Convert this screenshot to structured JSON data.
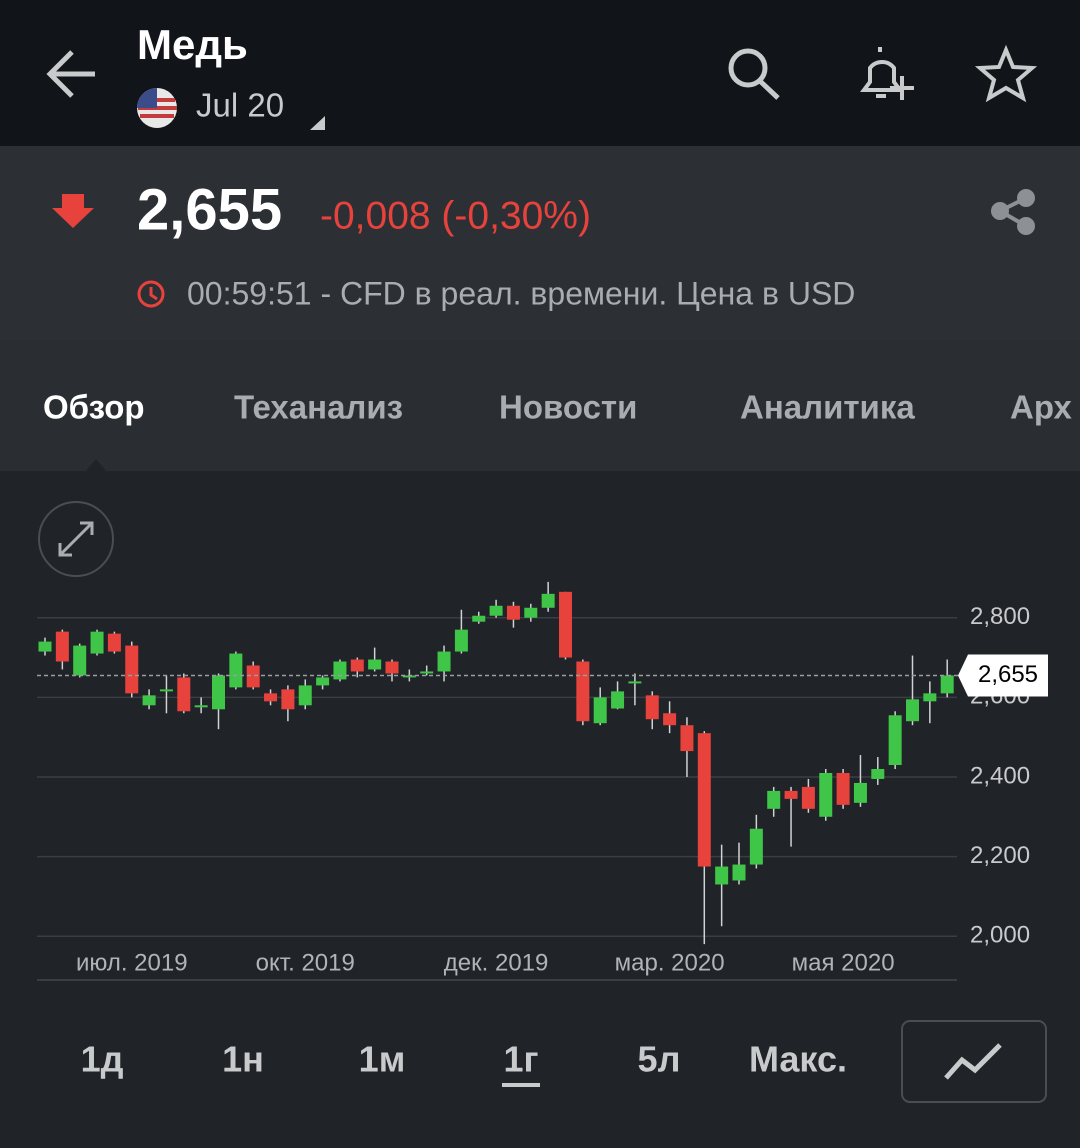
{
  "header": {
    "title": "Медь",
    "contract": "Jul 20"
  },
  "quote": {
    "price": "2,655",
    "change": "-0,008 (-0,30%)",
    "status": "00:59:51 - CFD в реал. времени. Цена в USD"
  },
  "tabs": [
    "Обзор",
    "Теханализ",
    "Новости",
    "Аналитика",
    "Арх"
  ],
  "chart_data": {
    "type": "candlestick",
    "categories": [
      null,
      null,
      null,
      null,
      null,
      "июл. 2019",
      null,
      null,
      null,
      null,
      null,
      null,
      null,
      null,
      null,
      "окт. 2019",
      null,
      null,
      null,
      null,
      null,
      null,
      null,
      null,
      null,
      null,
      "дек. 2019",
      null,
      null,
      null,
      null,
      null,
      null,
      null,
      null,
      null,
      "мар. 2020",
      null,
      null,
      null,
      null,
      null,
      null,
      null,
      null,
      null,
      "мая 2020",
      null,
      null,
      null,
      null,
      null,
      null
    ],
    "open": [
      2715,
      2765,
      2655,
      2710,
      2760,
      2730,
      2580,
      2615,
      2650,
      2575,
      2570,
      2625,
      2680,
      2610,
      2620,
      2580,
      2630,
      2645,
      2695,
      2670,
      2690,
      2650,
      2660,
      2665,
      2715,
      2790,
      2805,
      2830,
      2800,
      2825,
      2865,
      2690,
      2535,
      2572,
      2635,
      2605,
      2560,
      2530,
      2510,
      2130,
      2140,
      2180,
      2320,
      2365,
      2375,
      2300,
      2410,
      2335,
      2395,
      2430,
      2540,
      2590,
      2610
    ],
    "high": [
      2750,
      2770,
      2735,
      2770,
      2765,
      2740,
      2620,
      2655,
      2660,
      2600,
      2660,
      2715,
      2690,
      2620,
      2630,
      2645,
      2655,
      2695,
      2700,
      2725,
      2695,
      2670,
      2680,
      2730,
      2820,
      2815,
      2845,
      2840,
      2835,
      2890,
      2865,
      2695,
      2625,
      2640,
      2660,
      2615,
      2590,
      2550,
      2515,
      2230,
      2235,
      2305,
      2375,
      2375,
      2395,
      2420,
      2420,
      2455,
      2450,
      2565,
      2705,
      2640,
      2695
    ],
    "low": [
      2705,
      2670,
      2650,
      2705,
      2710,
      2600,
      2570,
      2560,
      2560,
      2560,
      2520,
      2620,
      2620,
      2580,
      2540,
      2570,
      2620,
      2640,
      2650,
      2665,
      2640,
      2640,
      2655,
      2640,
      2710,
      2785,
      2800,
      2775,
      2790,
      2815,
      2695,
      2530,
      2530,
      2570,
      2580,
      2520,
      2510,
      2400,
      1980,
      2025,
      2130,
      2170,
      2300,
      2225,
      2310,
      2290,
      2320,
      2325,
      2380,
      2420,
      2530,
      2535,
      2600
    ],
    "close": [
      2740,
      2690,
      2730,
      2765,
      2715,
      2610,
      2605,
      2620,
      2565,
      2580,
      2655,
      2710,
      2625,
      2590,
      2570,
      2630,
      2650,
      2690,
      2665,
      2695,
      2660,
      2655,
      2665,
      2715,
      2770,
      2805,
      2830,
      2795,
      2825,
      2860,
      2700,
      2540,
      2600,
      2615,
      2640,
      2545,
      2530,
      2465,
      2175,
      2175,
      2180,
      2270,
      2365,
      2345,
      2320,
      2410,
      2330,
      2385,
      2420,
      2555,
      2595,
      2610,
      2655
    ],
    "up_color": "#3fc547",
    "down_color": "#e8423d",
    "ylim": [
      1890,
      2950
    ],
    "yticks": [
      {
        "value": 2000,
        "label": "2,000"
      },
      {
        "value": 2200,
        "label": "2,200"
      },
      {
        "value": 2400,
        "label": "2,400"
      },
      {
        "value": 2600,
        "label": "2,600"
      },
      {
        "value": 2800,
        "label": "2,800"
      }
    ],
    "grid": true,
    "last_price": {
      "value": 2655,
      "label": "2,655"
    }
  },
  "ranges": [
    "1д",
    "1н",
    "1м",
    "1г",
    "5л",
    "Макс."
  ]
}
